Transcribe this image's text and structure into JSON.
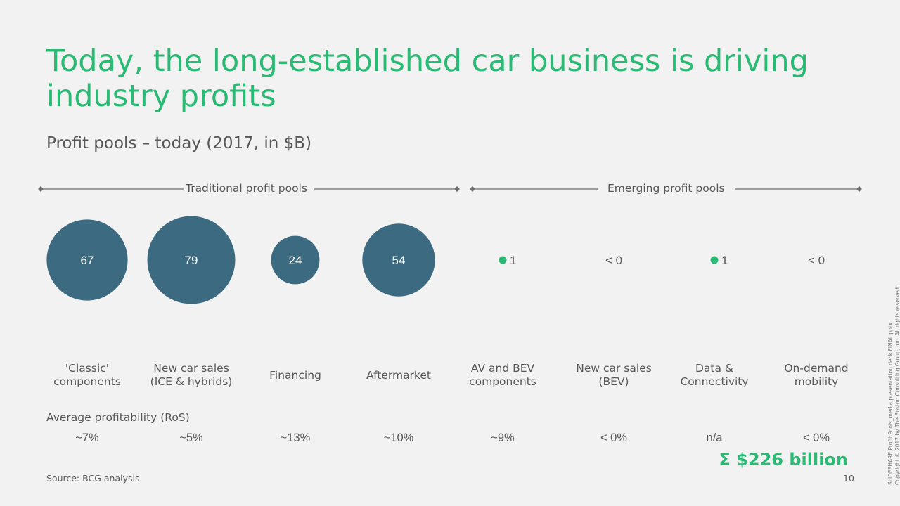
{
  "title": "Today, the long-established car business is driving industry profits",
  "subtitle": "Profit pools – today (2017, in $B)",
  "sections": {
    "traditional": "Traditional profit pools",
    "emerging": "Emerging profit pools"
  },
  "colors": {
    "accent": "#29ba74",
    "bubble": "#3c6a80",
    "text": "#575757"
  },
  "chart_data": {
    "type": "bubble",
    "categories": [
      "'Classic' components",
      "New car sales (ICE & hybrids)",
      "Financing",
      "Aftermarket",
      "AV and BEV components",
      "New car sales (BEV)",
      "Data & Connectivity",
      "On-demand mobility"
    ],
    "values": [
      67,
      79,
      24,
      54,
      1,
      0,
      1,
      0
    ],
    "value_labels": [
      "67",
      "79",
      "24",
      "54",
      "1",
      "< 0",
      "1",
      "< 0"
    ],
    "groups": [
      "Traditional profit pools",
      "Traditional profit pools",
      "Traditional profit pools",
      "Traditional profit pools",
      "Emerging profit pools",
      "Emerging profit pools",
      "Emerging profit pools",
      "Emerging profit pools"
    ],
    "profitability_title": "Average profitability (RoS)",
    "profitability": [
      "~7%",
      "~5%",
      "~13%",
      "~10%",
      "~9%",
      "< 0%",
      "n/a",
      "< 0%"
    ],
    "total": "Σ $226 billion"
  },
  "category_label_lines": [
    [
      "'Classic'",
      "components"
    ],
    [
      "New car sales",
      "(ICE & hybrids)"
    ],
    [
      "Financing"
    ],
    [
      "Aftermarket"
    ],
    [
      "AV and BEV",
      "components"
    ],
    [
      "New car sales",
      "(BEV)"
    ],
    [
      "Data &",
      "Connectivity"
    ],
    [
      "On-demand",
      "mobility"
    ]
  ],
  "footer": {
    "source": "Source: BCG analysis",
    "page": "10",
    "side_note_1": "SLIDESHARE Profit Pools_media presentation deck FINAL.pptx",
    "side_note_2": "Copyright © 2017 by The Boston Consulting Group, Inc. All rights reserved."
  }
}
